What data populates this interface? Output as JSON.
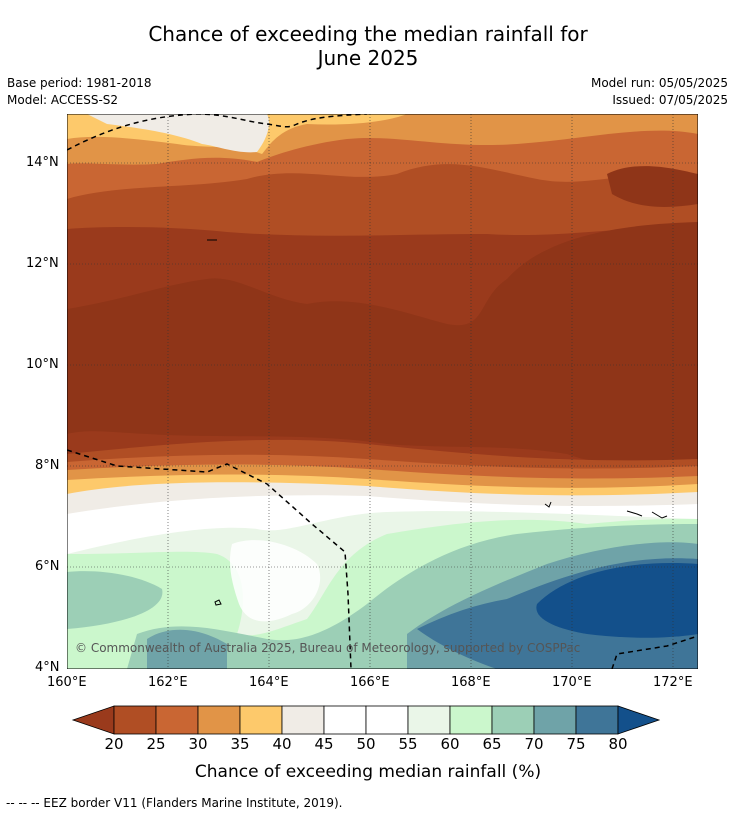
{
  "title_line1": "Chance of exceeding the median rainfall for",
  "title_line2": "June 2025",
  "meta_left": [
    "Base period: 1981-2018",
    "Model: ACCESS-S2"
  ],
  "meta_right": [
    "Model run: 05/05/2025",
    "Issued: 07/05/2025"
  ],
  "lat_labels": [
    "14°N",
    "12°N",
    "10°N",
    "8°N",
    "6°N",
    "4°N"
  ],
  "lon_labels": [
    "160°E",
    "162°E",
    "164°E",
    "166°E",
    "168°E",
    "170°E",
    "172°E"
  ],
  "copyright": "© Commonwealth of Australia 2025, Bureau of Meteorology, supported by COSPPac",
  "colorbar": {
    "ticks": [
      "20",
      "25",
      "30",
      "35",
      "40",
      "45",
      "50",
      "55",
      "60",
      "65",
      "70",
      "75",
      "80"
    ],
    "colors": [
      "#9a3a1c",
      "#b04e24",
      "#c96633",
      "#e19447",
      "#fdc96b",
      "#f0ece6",
      "#ffffff",
      "#ffffff",
      "#eaf6e8",
      "#cbf7cc",
      "#9ccfb6",
      "#6fa3a8",
      "#3f7598",
      "#13508b"
    ],
    "label": "Chance of exceeding median rainfall (%)"
  },
  "footnote": "-- -- -- EEZ border V11 (Flanders Marine Institute, 2019)."
}
